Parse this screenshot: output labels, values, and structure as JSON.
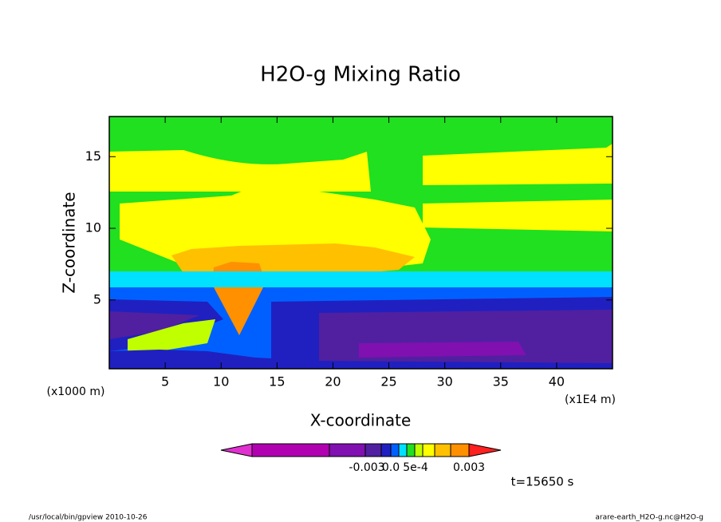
{
  "chart_data": {
    "type": "contour",
    "title": "H2O-g Mixing Ratio",
    "x_label": "X-coordinate",
    "y_label": "Z-coordinate",
    "x_unit": "(x1E4 m)",
    "y_unit": "(x1000 m)",
    "xlim": [
      0,
      45
    ],
    "ylim": [
      0.2,
      17.8
    ],
    "xticks": [
      5,
      10,
      15,
      20,
      25,
      30,
      35,
      40
    ],
    "yticks": [
      5,
      10,
      15
    ],
    "colorbar": {
      "colors": [
        "#e030d0",
        "#b000b0",
        "#8010b0",
        "#5020a0",
        "#2020c0",
        "#0060ff",
        "#00e0ff",
        "#20e020",
        "#c0ff00",
        "#ffff00",
        "#ffc000",
        "#ff9000",
        "#ff2020"
      ],
      "labels": [
        "-0.003",
        "0.0",
        "5e-4",
        "0.003"
      ]
    },
    "time_label": "t=15650 s",
    "footer_left": "/usr/local/bin/gpview  2010-10-26",
    "footer_right": "arare-earth_H2O-g.nc@H2O-g"
  }
}
